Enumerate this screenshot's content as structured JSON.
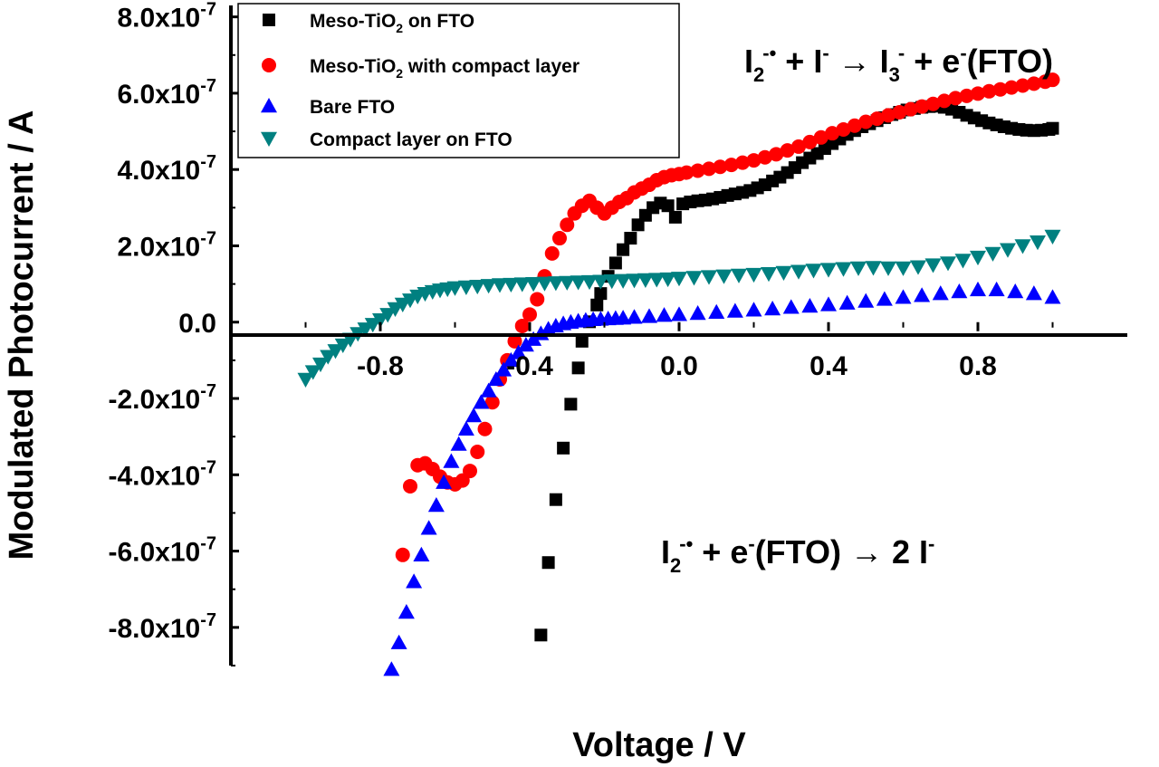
{
  "chart_data": {
    "type": "scatter",
    "title": "",
    "xlabel": "Voltage / V",
    "ylabel": "Modulated Photocurrent / A",
    "xlim": [
      -1.2,
      1.2
    ],
    "ylim": [
      -9e-07,
      8.3e-07
    ],
    "x_ticks": [
      -0.8,
      -0.4,
      0.0,
      0.4,
      0.8
    ],
    "x_tick_labels": [
      "-0.8",
      "-0.4",
      "0.0",
      "0.4",
      "0.8"
    ],
    "y_ticks": [
      -8e-07,
      -6e-07,
      -4e-07,
      -2e-07,
      0,
      2e-07,
      4e-07,
      6e-07,
      8e-07
    ],
    "y_tick_labels": [
      {
        "mant": "-8.0x10",
        "exp": "-7"
      },
      {
        "mant": "-6.0x10",
        "exp": "-7"
      },
      {
        "mant": "-4.0x10",
        "exp": "-7"
      },
      {
        "mant": "-2.0x10",
        "exp": "-7"
      },
      {
        "mant": "0.0",
        "exp": ""
      },
      {
        "mant": "2.0x10",
        "exp": "-7"
      },
      {
        "mant": "4.0x10",
        "exp": "-7"
      },
      {
        "mant": "6.0x10",
        "exp": "-7"
      },
      {
        "mant": "8.0x10",
        "exp": "-7"
      }
    ],
    "grid": false,
    "legend_position": "top-left",
    "series": [
      {
        "name": "Meso-TiO2 on FTO",
        "legend_parts": [
          "Meso-TiO",
          "2",
          " on FTO"
        ],
        "marker": "square",
        "color": "#000000",
        "x": [
          -0.37,
          -0.35,
          -0.33,
          -0.31,
          -0.29,
          -0.27,
          -0.26,
          -0.24,
          -0.22,
          -0.21,
          -0.19,
          -0.17,
          -0.15,
          -0.13,
          -0.11,
          -0.09,
          -0.07,
          -0.05,
          -0.03,
          -0.01,
          0.01,
          0.03,
          0.05,
          0.07,
          0.09,
          0.11,
          0.13,
          0.15,
          0.17,
          0.19,
          0.21,
          0.23,
          0.25,
          0.27,
          0.29,
          0.31,
          0.33,
          0.35,
          0.37,
          0.39,
          0.41,
          0.43,
          0.45,
          0.47,
          0.49,
          0.51,
          0.53,
          0.55,
          0.57,
          0.59,
          0.61,
          0.63,
          0.65,
          0.67,
          0.69,
          0.71,
          0.73,
          0.75,
          0.77,
          0.79,
          0.81,
          0.83,
          0.85,
          0.87,
          0.89,
          0.91,
          0.93,
          0.95,
          0.97,
          0.99,
          1.0
        ],
        "y": [
          -8.2e-07,
          -6.3e-07,
          -4.65e-07,
          -3.3e-07,
          -2.15e-07,
          -1.2e-07,
          -5e-08,
          1e-09,
          4.5e-08,
          7.5e-08,
          1.2e-07,
          1.55e-07,
          1.9e-07,
          2.2e-07,
          2.55e-07,
          2.8e-07,
          3e-07,
          3.12e-07,
          3.05e-07,
          2.75e-07,
          3.1e-07,
          3.15e-07,
          3.18e-07,
          3.2e-07,
          3.23e-07,
          3.27e-07,
          3.32e-07,
          3.36e-07,
          3.4e-07,
          3.45e-07,
          3.52e-07,
          3.6e-07,
          3.7e-07,
          3.8e-07,
          3.92e-07,
          4.05e-07,
          4.18e-07,
          4.3e-07,
          4.42e-07,
          4.55e-07,
          4.68e-07,
          4.8e-07,
          4.92e-07,
          5.02e-07,
          5.12e-07,
          5.2e-07,
          5.28e-07,
          5.36e-07,
          5.44e-07,
          5.5e-07,
          5.56e-07,
          5.6e-07,
          5.63e-07,
          5.65e-07,
          5.66e-07,
          5.63e-07,
          5.58e-07,
          5.5e-07,
          5.42e-07,
          5.35e-07,
          5.28e-07,
          5.22e-07,
          5.17e-07,
          5.12e-07,
          5.08e-07,
          5.05e-07,
          5.03e-07,
          5.02e-07,
          5.03e-07,
          5.05e-07,
          5.08e-07
        ]
      },
      {
        "name": "Meso-TiO2 with compact layer",
        "legend_parts": [
          "Meso-TiO",
          "2",
          " with compact layer"
        ],
        "marker": "circle",
        "color": "#ff0000",
        "x": [
          -0.74,
          -0.72,
          -0.7,
          -0.68,
          -0.66,
          -0.64,
          -0.62,
          -0.6,
          -0.58,
          -0.56,
          -0.54,
          -0.52,
          -0.5,
          -0.48,
          -0.46,
          -0.44,
          -0.42,
          -0.4,
          -0.38,
          -0.36,
          -0.34,
          -0.32,
          -0.3,
          -0.28,
          -0.26,
          -0.24,
          -0.22,
          -0.2,
          -0.18,
          -0.16,
          -0.14,
          -0.12,
          -0.1,
          -0.08,
          -0.06,
          -0.04,
          -0.02,
          0.0,
          0.02,
          0.05,
          0.08,
          0.11,
          0.14,
          0.17,
          0.2,
          0.23,
          0.26,
          0.29,
          0.32,
          0.35,
          0.38,
          0.41,
          0.44,
          0.47,
          0.5,
          0.53,
          0.56,
          0.59,
          0.62,
          0.65,
          0.68,
          0.71,
          0.74,
          0.77,
          0.8,
          0.83,
          0.86,
          0.89,
          0.92,
          0.95,
          0.98,
          1.0
        ],
        "y": [
          -6.1e-07,
          -4.3e-07,
          -3.75e-07,
          -3.7e-07,
          -3.85e-07,
          -4.05e-07,
          -4.2e-07,
          -4.25e-07,
          -4.15e-07,
          -3.9e-07,
          -3.4e-07,
          -2.8e-07,
          -2.1e-07,
          -1.5e-07,
          -1e-07,
          -5e-08,
          -1e-08,
          2e-08,
          6e-08,
          1.2e-07,
          1.8e-07,
          2.2e-07,
          2.55e-07,
          2.85e-07,
          3.05e-07,
          3.18e-07,
          3e-07,
          2.85e-07,
          3e-07,
          3.15e-07,
          3.25e-07,
          3.4e-07,
          3.5e-07,
          3.6e-07,
          3.72e-07,
          3.8e-07,
          3.85e-07,
          3.88e-07,
          3.92e-07,
          3.97e-07,
          4.02e-07,
          4.07e-07,
          4.12e-07,
          4.18e-07,
          4.24e-07,
          4.32e-07,
          4.4e-07,
          4.5e-07,
          4.6e-07,
          4.72e-07,
          4.84e-07,
          4.95e-07,
          5.05e-07,
          5.15e-07,
          5.25e-07,
          5.33e-07,
          5.42e-07,
          5.5e-07,
          5.58e-07,
          5.65e-07,
          5.72e-07,
          5.8e-07,
          5.87e-07,
          5.93e-07,
          5.99e-07,
          6.05e-07,
          6.1e-07,
          6.15e-07,
          6.2e-07,
          6.25e-07,
          6.3e-07,
          6.35e-07
        ]
      },
      {
        "name": "Bare FTO",
        "legend_parts": [
          "Bare FTO",
          "",
          ""
        ],
        "marker": "triangle-up",
        "color": "#0000ff",
        "x": [
          -0.77,
          -0.75,
          -0.73,
          -0.71,
          -0.69,
          -0.67,
          -0.65,
          -0.63,
          -0.61,
          -0.59,
          -0.57,
          -0.55,
          -0.53,
          -0.51,
          -0.49,
          -0.47,
          -0.45,
          -0.43,
          -0.41,
          -0.39,
          -0.37,
          -0.35,
          -0.33,
          -0.31,
          -0.29,
          -0.27,
          -0.25,
          -0.23,
          -0.21,
          -0.19,
          -0.17,
          -0.15,
          -0.12,
          -0.08,
          -0.04,
          0.0,
          0.05,
          0.1,
          0.15,
          0.2,
          0.25,
          0.3,
          0.35,
          0.4,
          0.45,
          0.5,
          0.55,
          0.6,
          0.65,
          0.7,
          0.75,
          0.8,
          0.85,
          0.9,
          0.95,
          1.0
        ],
        "y": [
          -9.1e-07,
          -8.4e-07,
          -7.6e-07,
          -6.8e-07,
          -6.1e-07,
          -5.4e-07,
          -4.8e-07,
          -4.2e-07,
          -3.65e-07,
          -3.2e-07,
          -2.8e-07,
          -2.45e-07,
          -2.1e-07,
          -1.8e-07,
          -1.5e-07,
          -1.25e-07,
          -1e-07,
          -8e-08,
          -6e-08,
          -4.5e-08,
          -3e-08,
          -1.8e-08,
          -1e-08,
          -4e-09,
          0,
          3e-09,
          5e-09,
          7e-09,
          8e-09,
          9e-09,
          1e-08,
          1.1e-08,
          1.3e-08,
          1.5e-08,
          1.8e-08,
          2e-08,
          2.3e-08,
          2.6e-08,
          2.9e-08,
          3.2e-08,
          3.5e-08,
          3.9e-08,
          4.2e-08,
          4.6e-08,
          5e-08,
          5.5e-08,
          6e-08,
          6.5e-08,
          7e-08,
          7.5e-08,
          8e-08,
          8.5e-08,
          8.5e-08,
          8e-08,
          7.5e-08,
          6.5e-08
        ]
      },
      {
        "name": "Compact layer on FTO",
        "legend_parts": [
          "Compact layer on FTO",
          "",
          ""
        ],
        "marker": "triangle-down",
        "color": "#008080",
        "x": [
          -1.0,
          -0.98,
          -0.96,
          -0.94,
          -0.92,
          -0.9,
          -0.88,
          -0.86,
          -0.84,
          -0.82,
          -0.8,
          -0.78,
          -0.76,
          -0.74,
          -0.72,
          -0.7,
          -0.68,
          -0.66,
          -0.64,
          -0.62,
          -0.6,
          -0.57,
          -0.54,
          -0.51,
          -0.48,
          -0.45,
          -0.42,
          -0.39,
          -0.36,
          -0.33,
          -0.3,
          -0.27,
          -0.24,
          -0.21,
          -0.18,
          -0.15,
          -0.12,
          -0.09,
          -0.06,
          -0.03,
          0.0,
          0.04,
          0.08,
          0.12,
          0.16,
          0.2,
          0.24,
          0.28,
          0.32,
          0.36,
          0.4,
          0.44,
          0.48,
          0.52,
          0.56,
          0.6,
          0.64,
          0.68,
          0.72,
          0.76,
          0.8,
          0.84,
          0.88,
          0.92,
          0.96,
          1.0
        ],
        "y": [
          -1.5e-07,
          -1.3e-07,
          -1.1e-07,
          -9e-08,
          -7.5e-08,
          -6e-08,
          -4.5e-08,
          -3e-08,
          -1.8e-08,
          -6e-09,
          6e-09,
          2e-08,
          3.5e-08,
          4.7e-08,
          5.8e-08,
          6.8e-08,
          7.5e-08,
          8e-08,
          8.4e-08,
          8.7e-08,
          9e-08,
          9.2e-08,
          9.4e-08,
          9.6e-08,
          9.8e-08,
          9.9e-08,
          1e-07,
          1.01e-07,
          1.02e-07,
          1.03e-07,
          1.04e-07,
          1.05e-07,
          1.06e-07,
          1.07e-07,
          1.08e-07,
          1.09e-07,
          1.1e-07,
          1.11e-07,
          1.12e-07,
          1.13e-07,
          1.15e-07,
          1.17e-07,
          1.19e-07,
          1.21e-07,
          1.23e-07,
          1.25e-07,
          1.27e-07,
          1.3e-07,
          1.33e-07,
          1.36e-07,
          1.38e-07,
          1.4e-07,
          1.42e-07,
          1.43e-07,
          1.42e-07,
          1.42e-07,
          1.45e-07,
          1.5e-07,
          1.55e-07,
          1.62e-07,
          1.7e-07,
          1.8e-07,
          1.9e-07,
          2e-07,
          2.1e-07,
          2.25e-07
        ]
      }
    ]
  },
  "annotations": [
    {
      "id": "oxidation",
      "parts": [
        "I",
        "2",
        "-•",
        " + I",
        "-",
        " → I",
        "3",
        "-",
        " + e",
        "-",
        "(FTO)"
      ]
    },
    {
      "id": "reduction",
      "parts": [
        "I",
        "2",
        "-•",
        " + e",
        "-",
        "(FTO) → 2 I",
        "-"
      ]
    }
  ]
}
